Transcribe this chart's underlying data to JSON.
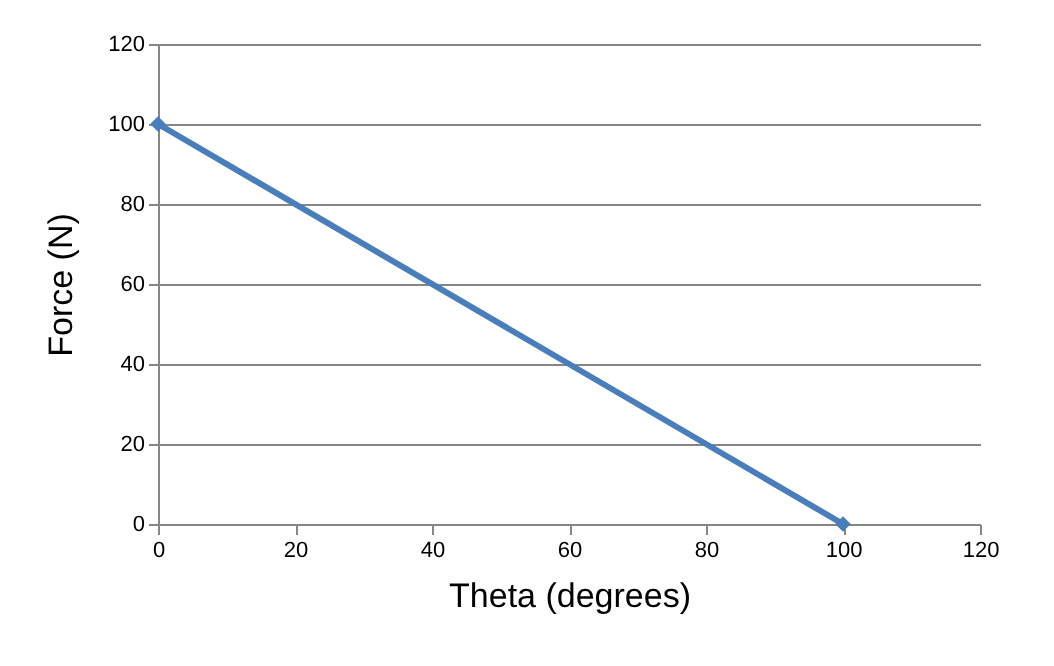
{
  "chart_data": {
    "type": "line",
    "xlabel": "Theta (degrees)",
    "ylabel": "Force (N)",
    "x": [
      0,
      100
    ],
    "series": [
      {
        "color": "#4a7ebb",
        "values": [
          100,
          0
        ]
      }
    ],
    "xlim": [
      0,
      120
    ],
    "xticks": [
      0,
      20,
      40,
      60,
      80,
      100,
      120
    ],
    "ylim": [
      0,
      120
    ],
    "yticks": [
      0,
      20,
      40,
      60,
      80,
      100,
      120
    ],
    "grid": "y",
    "marker": "diamond",
    "line_style": "solid"
  }
}
